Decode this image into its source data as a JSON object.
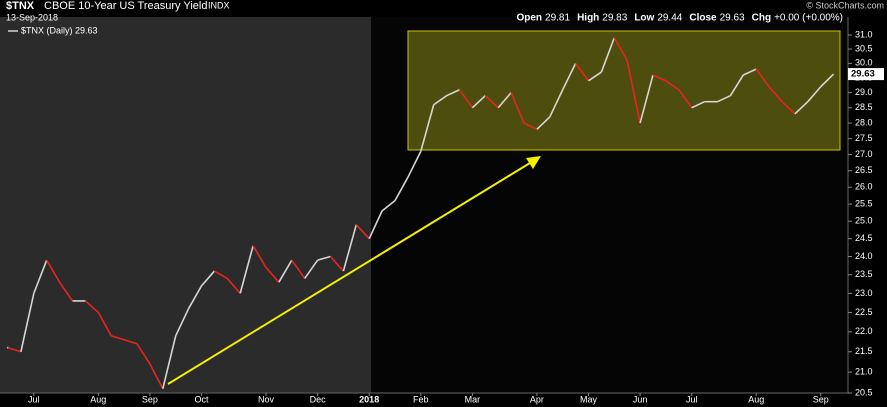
{
  "chart_data": {
    "type": "line",
    "title": "$TNX",
    "subtitle": "CBOE 10-Year US Treasury Yield",
    "exchange": "INDX",
    "date": "13-Sep-2018",
    "quote": [
      {
        "label": "Open",
        "value": "29.81"
      },
      {
        "label": "High",
        "value": "29.83"
      },
      {
        "label": "Low",
        "value": "29.44"
      },
      {
        "label": "Close",
        "value": "29.63"
      },
      {
        "label": "Chg",
        "value": "+0.00 (+0.00%)"
      }
    ],
    "credit": "© StockCharts.com",
    "legend_label": "$TNX (Daily) 29.63",
    "last_label": "29.63",
    "log_scale": true,
    "up_color": "#d6d6d6",
    "down_color": "#e8241c",
    "categories": [
      "",
      null,
      "Jul",
      null,
      null,
      null,
      null,
      "Aug",
      null,
      null,
      null,
      "Sep",
      null,
      null,
      null,
      "Oct",
      null,
      null,
      null,
      null,
      "Nov",
      null,
      null,
      null,
      "Dec",
      null,
      null,
      null,
      "2018",
      null,
      null,
      null,
      "Feb",
      null,
      null,
      null,
      "Mar",
      null,
      null,
      null,
      null,
      "Apr",
      null,
      null,
      null,
      "May",
      null,
      null,
      null,
      "Jun",
      null,
      null,
      null,
      "Jul",
      null,
      null,
      null,
      null,
      "Aug",
      null,
      null,
      null,
      null,
      "Sep",
      null
    ],
    "series": [
      {
        "name": "$TNX",
        "values": [
          21.6,
          21.5,
          23.0,
          23.9,
          23.3,
          22.8,
          22.8,
          22.5,
          21.9,
          21.8,
          21.7,
          21.2,
          20.6,
          21.9,
          22.6,
          23.2,
          23.6,
          23.4,
          23.0,
          24.3,
          23.7,
          23.3,
          23.9,
          23.4,
          23.9,
          24.0,
          23.6,
          24.9,
          24.5,
          25.3,
          25.6,
          26.3,
          27.1,
          28.6,
          28.9,
          29.1,
          28.5,
          28.9,
          28.5,
          29.0,
          28.0,
          27.8,
          28.2,
          29.1,
          30.0,
          29.4,
          29.7,
          30.9,
          30.1,
          28.0,
          29.6,
          29.4,
          29.1,
          28.5,
          28.7,
          28.7,
          28.9,
          29.6,
          29.8,
          29.2,
          28.7,
          28.3,
          28.7,
          29.2,
          29.63
        ]
      }
    ],
    "ylim": [
      20.5,
      31.65
    ],
    "yticks": [
      20.5,
      {
        "value": 21,
        "label": "21.0"
      },
      21.5,
      {
        "value": 22,
        "label": "22.0"
      },
      22.5,
      {
        "value": 23,
        "label": "23.0"
      },
      23.5,
      {
        "value": 24,
        "label": "24.0"
      },
      24.5,
      {
        "value": 25,
        "label": "25.0"
      },
      25.5,
      {
        "value": 26,
        "label": "26.0"
      },
      26.5,
      {
        "value": 27,
        "label": "27.0"
      },
      27.5,
      {
        "value": 28,
        "label": "28.0"
      },
      28.5,
      {
        "value": 29,
        "label": "29.0"
      },
      29.5,
      {
        "value": 30,
        "label": "30.0"
      },
      30.5,
      {
        "value": 31,
        "label": "31.0"
      }
    ]
  }
}
